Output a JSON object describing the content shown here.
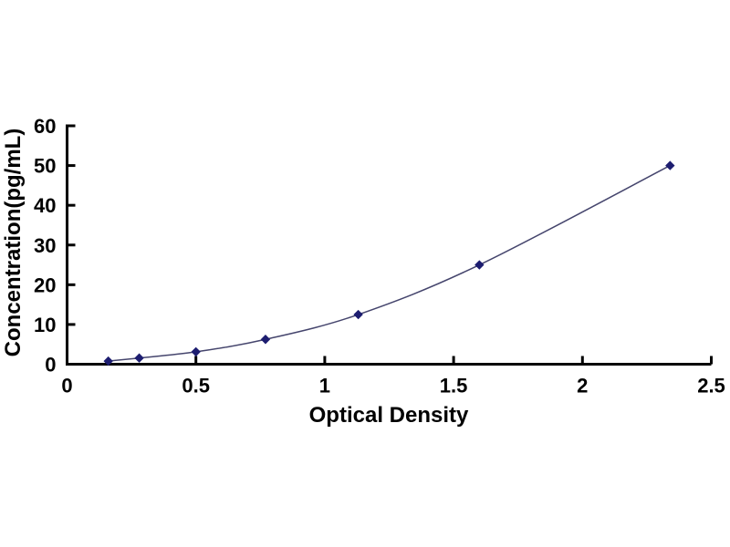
{
  "figure": {
    "background": "#ffffff"
  },
  "chart_data": {
    "type": "scatter",
    "title": "",
    "xlabel": "Optical Density",
    "ylabel": "Concentration(pg/mL)",
    "x": [
      0.16,
      0.28,
      0.5,
      0.77,
      1.13,
      1.6,
      2.34
    ],
    "y": [
      0.78,
      1.56,
      3.12,
      6.25,
      12.5,
      25,
      50
    ],
    "xlim": [
      0,
      2.5
    ],
    "ylim": [
      0,
      60
    ],
    "x_ticks": [
      0,
      0.5,
      1,
      1.5,
      2,
      2.5
    ],
    "x_tick_labels": [
      "0",
      "0.5",
      "1",
      "1.5",
      "2",
      "2.5"
    ],
    "y_ticks": [
      0,
      10,
      20,
      30,
      40,
      50,
      60
    ],
    "y_tick_labels": [
      "0",
      "10",
      "20",
      "30",
      "40",
      "50",
      "60"
    ],
    "grid": false,
    "legend": false,
    "marker": "diamond",
    "line_style": "smooth",
    "colors": {
      "marker": "#1d1d70",
      "line": "#45456d",
      "axis": "#000000",
      "text": "#000000"
    }
  }
}
